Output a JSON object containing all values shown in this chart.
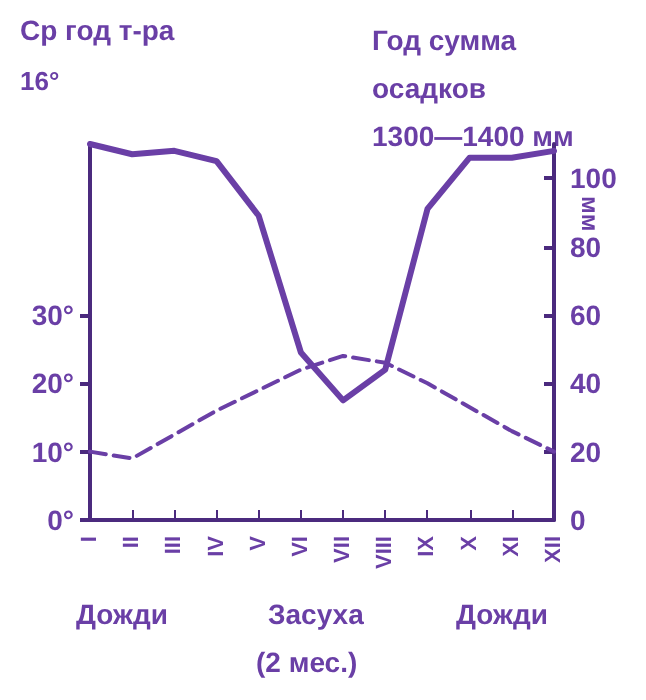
{
  "chart_data": {
    "type": "line",
    "categories": [
      "I",
      "II",
      "III",
      "IV",
      "V",
      "VI",
      "VII",
      "VIII",
      "IX",
      "X",
      "XI",
      "XII"
    ],
    "series": [
      {
        "axis": "y2",
        "color": "#6a3fa6",
        "line_style": "solid",
        "values": [
          110,
          107,
          108,
          105,
          89,
          49,
          35,
          44,
          91,
          106,
          106,
          108
        ]
      },
      {
        "color": "#6a3fa6",
        "line_style": "dashed",
        "values": [
          10,
          9,
          12.5,
          16,
          19,
          22,
          24,
          23,
          20,
          16.5,
          13,
          10
        ]
      }
    ],
    "ylim": [
      0,
      55
    ],
    "yticks": [
      {
        "value": 0,
        "label": "0°"
      },
      {
        "value": 10,
        "label": "10°"
      },
      {
        "value": 20,
        "label": "20°"
      },
      {
        "value": 30,
        "label": "30°"
      }
    ],
    "y2lim": [
      0,
      110
    ],
    "y2ticks": [
      0,
      20,
      40,
      60,
      80,
      100
    ],
    "y2label": "мм",
    "grid": false,
    "marker": "none",
    "annotations": [
      "Ср год т-ра",
      "16°",
      "Год сумма осадков 1300—1400 мм",
      "Дожди",
      "Засуха",
      "Дожди",
      "(2 мес.)"
    ]
  }
}
